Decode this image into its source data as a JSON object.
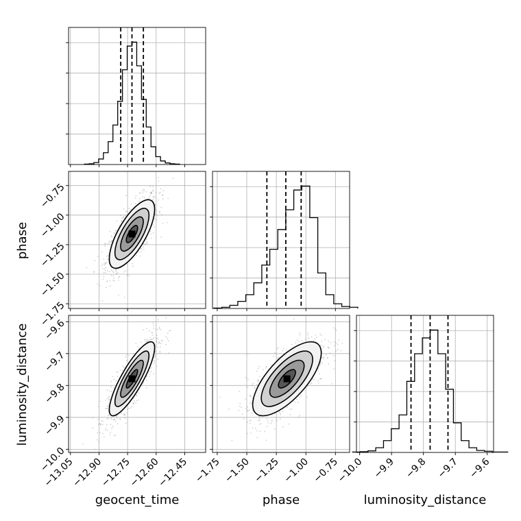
{
  "chart_data": {
    "type": "corner",
    "parameters": [
      {
        "name": "geocent_time",
        "label": "geocent_time",
        "ticks": [
          -13.05,
          -12.9,
          -12.75,
          -12.6,
          -12.45
        ],
        "tick_labels": [
          "−13.05",
          "−12.90",
          "−12.75",
          "−12.60",
          "−12.45"
        ],
        "range": [
          -13.06,
          -12.34
        ],
        "median": -12.727,
        "q16": -12.786,
        "q84": -12.667,
        "hist_counts": [
          1,
          2,
          5,
          14,
          30,
          58,
          100,
          160,
          240,
          300,
          310,
          250,
          165,
          95,
          45,
          20,
          9,
          4,
          2,
          1
        ]
      },
      {
        "name": "phase",
        "label": "phase",
        "ticks": [
          -1.75,
          -1.5,
          -1.25,
          -1.0,
          -0.75
        ],
        "tick_labels": [
          "−1.75",
          "−1.50",
          "−1.25",
          "−1.00",
          "−0.75"
        ],
        "range": [
          -1.79,
          -0.63
        ],
        "median": -1.17,
        "q16": -1.33,
        "q84": -1.04,
        "hist_counts": [
          1,
          3,
          8,
          18,
          35,
          65,
          110,
          150,
          200,
          250,
          300,
          310,
          230,
          90,
          35,
          12,
          5,
          3
        ]
      },
      {
        "name": "luminosity_distance",
        "label": "luminosity_distance",
        "ticks": [
          -10.0,
          -9.9,
          -9.8,
          -9.7,
          -9.6
        ],
        "tick_labels": [
          "−10.0",
          "−9.9",
          "−9.8",
          "−9.7",
          "−9.6"
        ],
        "range": [
          -10.01,
          -9.58
        ],
        "median": -9.779,
        "q16": -9.839,
        "q84": -9.723,
        "hist_counts": [
          1,
          2,
          4,
          12,
          30,
          60,
          95,
          180,
          250,
          290,
          310,
          250,
          160,
          75,
          30,
          12,
          5,
          3,
          1,
          1
        ]
      }
    ],
    "pair_means": {
      "phase_vs_geocent_time": [
        -12.727,
        -1.16
      ],
      "luminosity_distance_vs_geocent_time": [
        -12.727,
        -9.779
      ],
      "luminosity_distance_vs_phase": [
        -1.16,
        -9.779
      ]
    },
    "sigma_levels": [
      0.5,
      1.0,
      1.5,
      2.0
    ],
    "density_shading": "grayscale",
    "scatter_points": "light gray",
    "grid": true,
    "colors": {
      "line": "#000000",
      "grid": "#b0b0b0",
      "scatter": "#9a9a9a"
    }
  }
}
